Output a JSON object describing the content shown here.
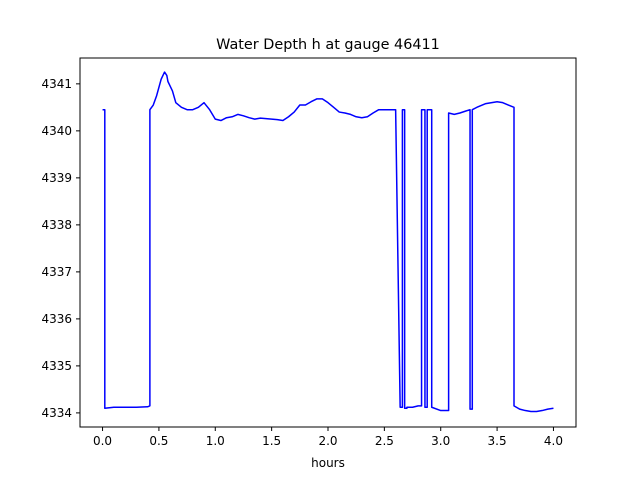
{
  "chart_data": {
    "type": "line",
    "title": "Water Depth h at gauge 46411",
    "xlabel": "hours",
    "ylabel": "",
    "xlim": [
      -0.2,
      4.2
    ],
    "ylim": [
      4333.7,
      4341.55
    ],
    "xticks": [
      "0.0",
      "0.5",
      "1.0",
      "1.5",
      "2.0",
      "2.5",
      "3.0",
      "3.5",
      "4.0"
    ],
    "yticks": [
      "4334",
      "4335",
      "4336",
      "4337",
      "4338",
      "4339",
      "4340",
      "4341"
    ],
    "grid": false,
    "line_color": "#0000ff",
    "series": [
      {
        "x": [
          0.0,
          0.02,
          0.02,
          0.1,
          0.2,
          0.3,
          0.4,
          0.42,
          0.42,
          0.45,
          0.48,
          0.52,
          0.55,
          0.57,
          0.58,
          0.6,
          0.62,
          0.65,
          0.7,
          0.75,
          0.8,
          0.85,
          0.9,
          0.95,
          1.0,
          1.05,
          1.1,
          1.15,
          1.2,
          1.25,
          1.3,
          1.35,
          1.4,
          1.45,
          1.5,
          1.55,
          1.6,
          1.65,
          1.7,
          1.75,
          1.8,
          1.85,
          1.9,
          1.95,
          2.0,
          2.05,
          2.1,
          2.15,
          2.2,
          2.25,
          2.3,
          2.35,
          2.4,
          2.45,
          2.5,
          2.55,
          2.6,
          2.64,
          2.66,
          2.66,
          2.68,
          2.68,
          2.7,
          2.7,
          2.75,
          2.8,
          2.83,
          2.83,
          2.86,
          2.86,
          2.88,
          2.88,
          2.92,
          2.92,
          3.0,
          3.05,
          3.07,
          3.07,
          3.12,
          3.17,
          3.22,
          3.26,
          3.26,
          3.28,
          3.28,
          3.32,
          3.4,
          3.5,
          3.55,
          3.6,
          3.65,
          3.65,
          3.7,
          3.75,
          3.8,
          3.85,
          3.9,
          3.95,
          4.0
        ],
        "y": [
          4340.45,
          4340.45,
          4334.1,
          4334.12,
          4334.12,
          4334.12,
          4334.13,
          4334.15,
          4340.45,
          4340.55,
          4340.75,
          4341.1,
          4341.25,
          4341.18,
          4341.05,
          4340.95,
          4340.85,
          4340.6,
          4340.5,
          4340.45,
          4340.45,
          4340.5,
          4340.6,
          4340.45,
          4340.25,
          4340.22,
          4340.28,
          4340.3,
          4340.35,
          4340.32,
          4340.28,
          4340.25,
          4340.27,
          4340.26,
          4340.25,
          4340.24,
          4340.22,
          4340.3,
          4340.4,
          4340.55,
          4340.55,
          4340.62,
          4340.68,
          4340.68,
          4340.6,
          4340.5,
          4340.4,
          4340.38,
          4340.35,
          4340.3,
          4340.28,
          4340.3,
          4340.38,
          4340.45,
          4340.45,
          4340.45,
          4340.45,
          4334.12,
          4334.12,
          4340.45,
          4340.45,
          4334.1,
          4334.1,
          4334.12,
          4334.12,
          4334.15,
          4334.15,
          4340.45,
          4340.45,
          4334.12,
          4334.12,
          4340.45,
          4340.45,
          4334.12,
          4334.05,
          4334.05,
          4334.05,
          4340.38,
          4340.35,
          4340.38,
          4340.42,
          4340.45,
          4334.08,
          4334.08,
          4340.45,
          4340.5,
          4340.58,
          4340.62,
          4340.6,
          4340.55,
          4340.5,
          4334.15,
          4334.08,
          4334.05,
          4334.03,
          4334.03,
          4334.05,
          4334.08,
          4334.1
        ]
      }
    ]
  }
}
